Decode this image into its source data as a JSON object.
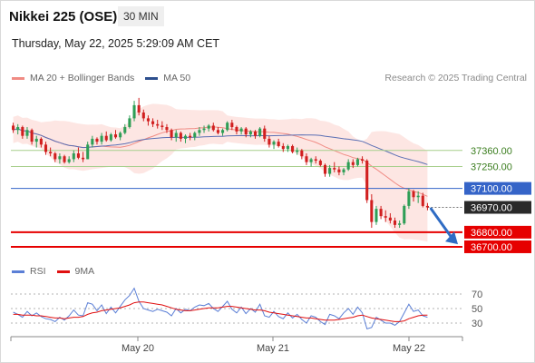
{
  "header": {
    "title": "Nikkei 225 (OSE)",
    "timeframe": "30 MIN",
    "timestamp": "Thursday, May 22, 2025 5:29:09 AM CET"
  },
  "legend_main": [
    {
      "label": "MA 20 + Bollinger Bands",
      "color": "#f08b84"
    },
    {
      "label": "MA 50",
      "color": "#2d4f8e"
    }
  ],
  "legend_rsi": [
    {
      "label": "RSI",
      "color": "#5b7fd6"
    },
    {
      "label": "9MA",
      "color": "#e01010"
    }
  ],
  "credit": "Research © 2025 Trading Central",
  "colors": {
    "up": "#2e9e56",
    "down": "#d11f1f",
    "band_fill": "#fde3e0",
    "ma20": "#f08b84",
    "ma50": "#5b6fb4",
    "resistance": "#a7cf8c",
    "pivot": "#3564c8",
    "support": "#e60000",
    "last": "#2a2a2a",
    "arrow": "#2f6cc4"
  },
  "chart_data": {
    "type": "candlestick",
    "x_ticks": [
      "May 20",
      "May 21",
      "May 22"
    ],
    "y_range": [
      36650,
      37800
    ],
    "levels": [
      {
        "label": "37360.00",
        "value": 37360,
        "kind": "resistance"
      },
      {
        "label": "37250.00",
        "value": 37250,
        "kind": "resistance"
      },
      {
        "label": "37100.00",
        "value": 37100,
        "kind": "pivot"
      },
      {
        "label": "36970.00",
        "value": 36970,
        "kind": "last"
      },
      {
        "label": "36800.00",
        "value": 36800,
        "kind": "support"
      },
      {
        "label": "36700.00",
        "value": 36700,
        "kind": "support"
      }
    ],
    "candles": [
      [
        37530,
        37550,
        37480,
        37500
      ],
      [
        37500,
        37540,
        37470,
        37520
      ],
      [
        37520,
        37530,
        37440,
        37460
      ],
      [
        37460,
        37520,
        37440,
        37500
      ],
      [
        37500,
        37510,
        37400,
        37420
      ],
      [
        37420,
        37460,
        37380,
        37440
      ],
      [
        37440,
        37450,
        37380,
        37400
      ],
      [
        37400,
        37420,
        37330,
        37350
      ],
      [
        37350,
        37380,
        37320,
        37340
      ],
      [
        37340,
        37350,
        37280,
        37300
      ],
      [
        37300,
        37340,
        37270,
        37320
      ],
      [
        37320,
        37330,
        37270,
        37280
      ],
      [
        37280,
        37320,
        37270,
        37300
      ],
      [
        37300,
        37360,
        37280,
        37340
      ],
      [
        37340,
        37380,
        37300,
        37310
      ],
      [
        37310,
        37350,
        37280,
        37300
      ],
      [
        37300,
        37420,
        37300,
        37400
      ],
      [
        37400,
        37460,
        37380,
        37440
      ],
      [
        37440,
        37450,
        37400,
        37420
      ],
      [
        37420,
        37480,
        37400,
        37460
      ],
      [
        37460,
        37490,
        37420,
        37430
      ],
      [
        37430,
        37480,
        37420,
        37470
      ],
      [
        37470,
        37500,
        37440,
        37450
      ],
      [
        37450,
        37490,
        37430,
        37480
      ],
      [
        37480,
        37540,
        37470,
        37520
      ],
      [
        37520,
        37600,
        37510,
        37580
      ],
      [
        37580,
        37700,
        37560,
        37670
      ],
      [
        37670,
        37720,
        37600,
        37620
      ],
      [
        37620,
        37640,
        37560,
        37580
      ],
      [
        37580,
        37600,
        37530,
        37560
      ],
      [
        37560,
        37580,
        37520,
        37540
      ],
      [
        37540,
        37570,
        37510,
        37530
      ],
      [
        37530,
        37560,
        37500,
        37520
      ],
      [
        37520,
        37540,
        37480,
        37500
      ],
      [
        37500,
        37510,
        37430,
        37450
      ],
      [
        37450,
        37500,
        37420,
        37480
      ],
      [
        37480,
        37490,
        37420,
        37440
      ],
      [
        37440,
        37470,
        37410,
        37460
      ],
      [
        37460,
        37480,
        37430,
        37450
      ],
      [
        37450,
        37490,
        37430,
        37480
      ],
      [
        37480,
        37520,
        37460,
        37500
      ],
      [
        37500,
        37530,
        37480,
        37510
      ],
      [
        37510,
        37540,
        37490,
        37530
      ],
      [
        37530,
        37550,
        37490,
        37500
      ],
      [
        37500,
        37520,
        37470,
        37480
      ],
      [
        37480,
        37510,
        37460,
        37500
      ],
      [
        37500,
        37560,
        37490,
        37550
      ],
      [
        37550,
        37570,
        37500,
        37520
      ],
      [
        37520,
        37530,
        37470,
        37490
      ],
      [
        37490,
        37520,
        37470,
        37510
      ],
      [
        37510,
        37520,
        37450,
        37470
      ],
      [
        37470,
        37500,
        37450,
        37490
      ],
      [
        37490,
        37500,
        37440,
        37460
      ],
      [
        37460,
        37520,
        37450,
        37510
      ],
      [
        37510,
        37530,
        37420,
        37440
      ],
      [
        37440,
        37460,
        37380,
        37400
      ],
      [
        37400,
        37430,
        37370,
        37420
      ],
      [
        37420,
        37440,
        37380,
        37390
      ],
      [
        37390,
        37410,
        37350,
        37370
      ],
      [
        37370,
        37400,
        37350,
        37390
      ],
      [
        37390,
        37400,
        37340,
        37350
      ],
      [
        37350,
        37380,
        37330,
        37360
      ],
      [
        37360,
        37370,
        37300,
        37320
      ],
      [
        37320,
        37340,
        37260,
        37280
      ],
      [
        37280,
        37310,
        37250,
        37300
      ],
      [
        37300,
        37320,
        37270,
        37290
      ],
      [
        37290,
        37300,
        37250,
        37260
      ],
      [
        37260,
        37270,
        37180,
        37200
      ],
      [
        37200,
        37260,
        37180,
        37240
      ],
      [
        37240,
        37280,
        37210,
        37230
      ],
      [
        37230,
        37250,
        37190,
        37210
      ],
      [
        37210,
        37240,
        37190,
        37230
      ],
      [
        37230,
        37300,
        37220,
        37280
      ],
      [
        37280,
        37300,
        37240,
        37260
      ],
      [
        37260,
        37310,
        37250,
        37300
      ],
      [
        37300,
        37320,
        37270,
        37290
      ],
      [
        37290,
        37300,
        37000,
        37020
      ],
      [
        37020,
        37060,
        36830,
        36870
      ],
      [
        36870,
        36980,
        36850,
        36960
      ],
      [
        36960,
        36980,
        36890,
        36910
      ],
      [
        36910,
        36950,
        36870,
        36900
      ],
      [
        36900,
        36930,
        36860,
        36880
      ],
      [
        36880,
        36900,
        36830,
        36850
      ],
      [
        36850,
        36880,
        36830,
        36860
      ],
      [
        36860,
        36990,
        36850,
        36980
      ],
      [
        36980,
        37100,
        36960,
        37080
      ],
      [
        37080,
        37090,
        37010,
        37040
      ],
      [
        37040,
        37080,
        37000,
        37050
      ],
      [
        37050,
        37070,
        36970,
        36980
      ],
      [
        36980,
        37000,
        36950,
        36970
      ]
    ],
    "rsi": {
      "y_ticks": [
        30,
        50,
        70
      ],
      "y_range": [
        15,
        85
      ],
      "rsi_values": [
        45,
        42,
        38,
        46,
        40,
        44,
        39,
        36,
        35,
        32,
        38,
        34,
        40,
        48,
        41,
        40,
        58,
        56,
        47,
        55,
        43,
        52,
        44,
        53,
        62,
        68,
        78,
        60,
        50,
        48,
        46,
        49,
        47,
        45,
        40,
        50,
        44,
        49,
        47,
        52,
        55,
        54,
        57,
        50,
        46,
        53,
        60,
        49,
        44,
        52,
        43,
        50,
        45,
        56,
        40,
        38,
        46,
        39,
        36,
        44,
        37,
        42,
        35,
        30,
        40,
        38,
        32,
        28,
        42,
        40,
        36,
        44,
        50,
        42,
        52,
        44,
        22,
        24,
        38,
        34,
        30,
        30,
        27,
        32,
        44,
        56,
        46,
        48,
        40,
        38
      ],
      "ma9_values": [
        42,
        42,
        41,
        41,
        41,
        40,
        40,
        39,
        38,
        37,
        37,
        36,
        37,
        38,
        38,
        39,
        42,
        44,
        45,
        47,
        48,
        49,
        50,
        51,
        53,
        55,
        58,
        59,
        59,
        58,
        57,
        56,
        55,
        53,
        51,
        49,
        48,
        47,
        47,
        48,
        49,
        50,
        51,
        51,
        51,
        52,
        53,
        53,
        52,
        51,
        50,
        49,
        48,
        48,
        47,
        45,
        44,
        43,
        42,
        41,
        40,
        39,
        38,
        37,
        37,
        36,
        35,
        34,
        34,
        34,
        35,
        36,
        37,
        38,
        40,
        41,
        39,
        37,
        36,
        35,
        34,
        33,
        32,
        32,
        33,
        36,
        38,
        40,
        41,
        41
      ]
    }
  }
}
